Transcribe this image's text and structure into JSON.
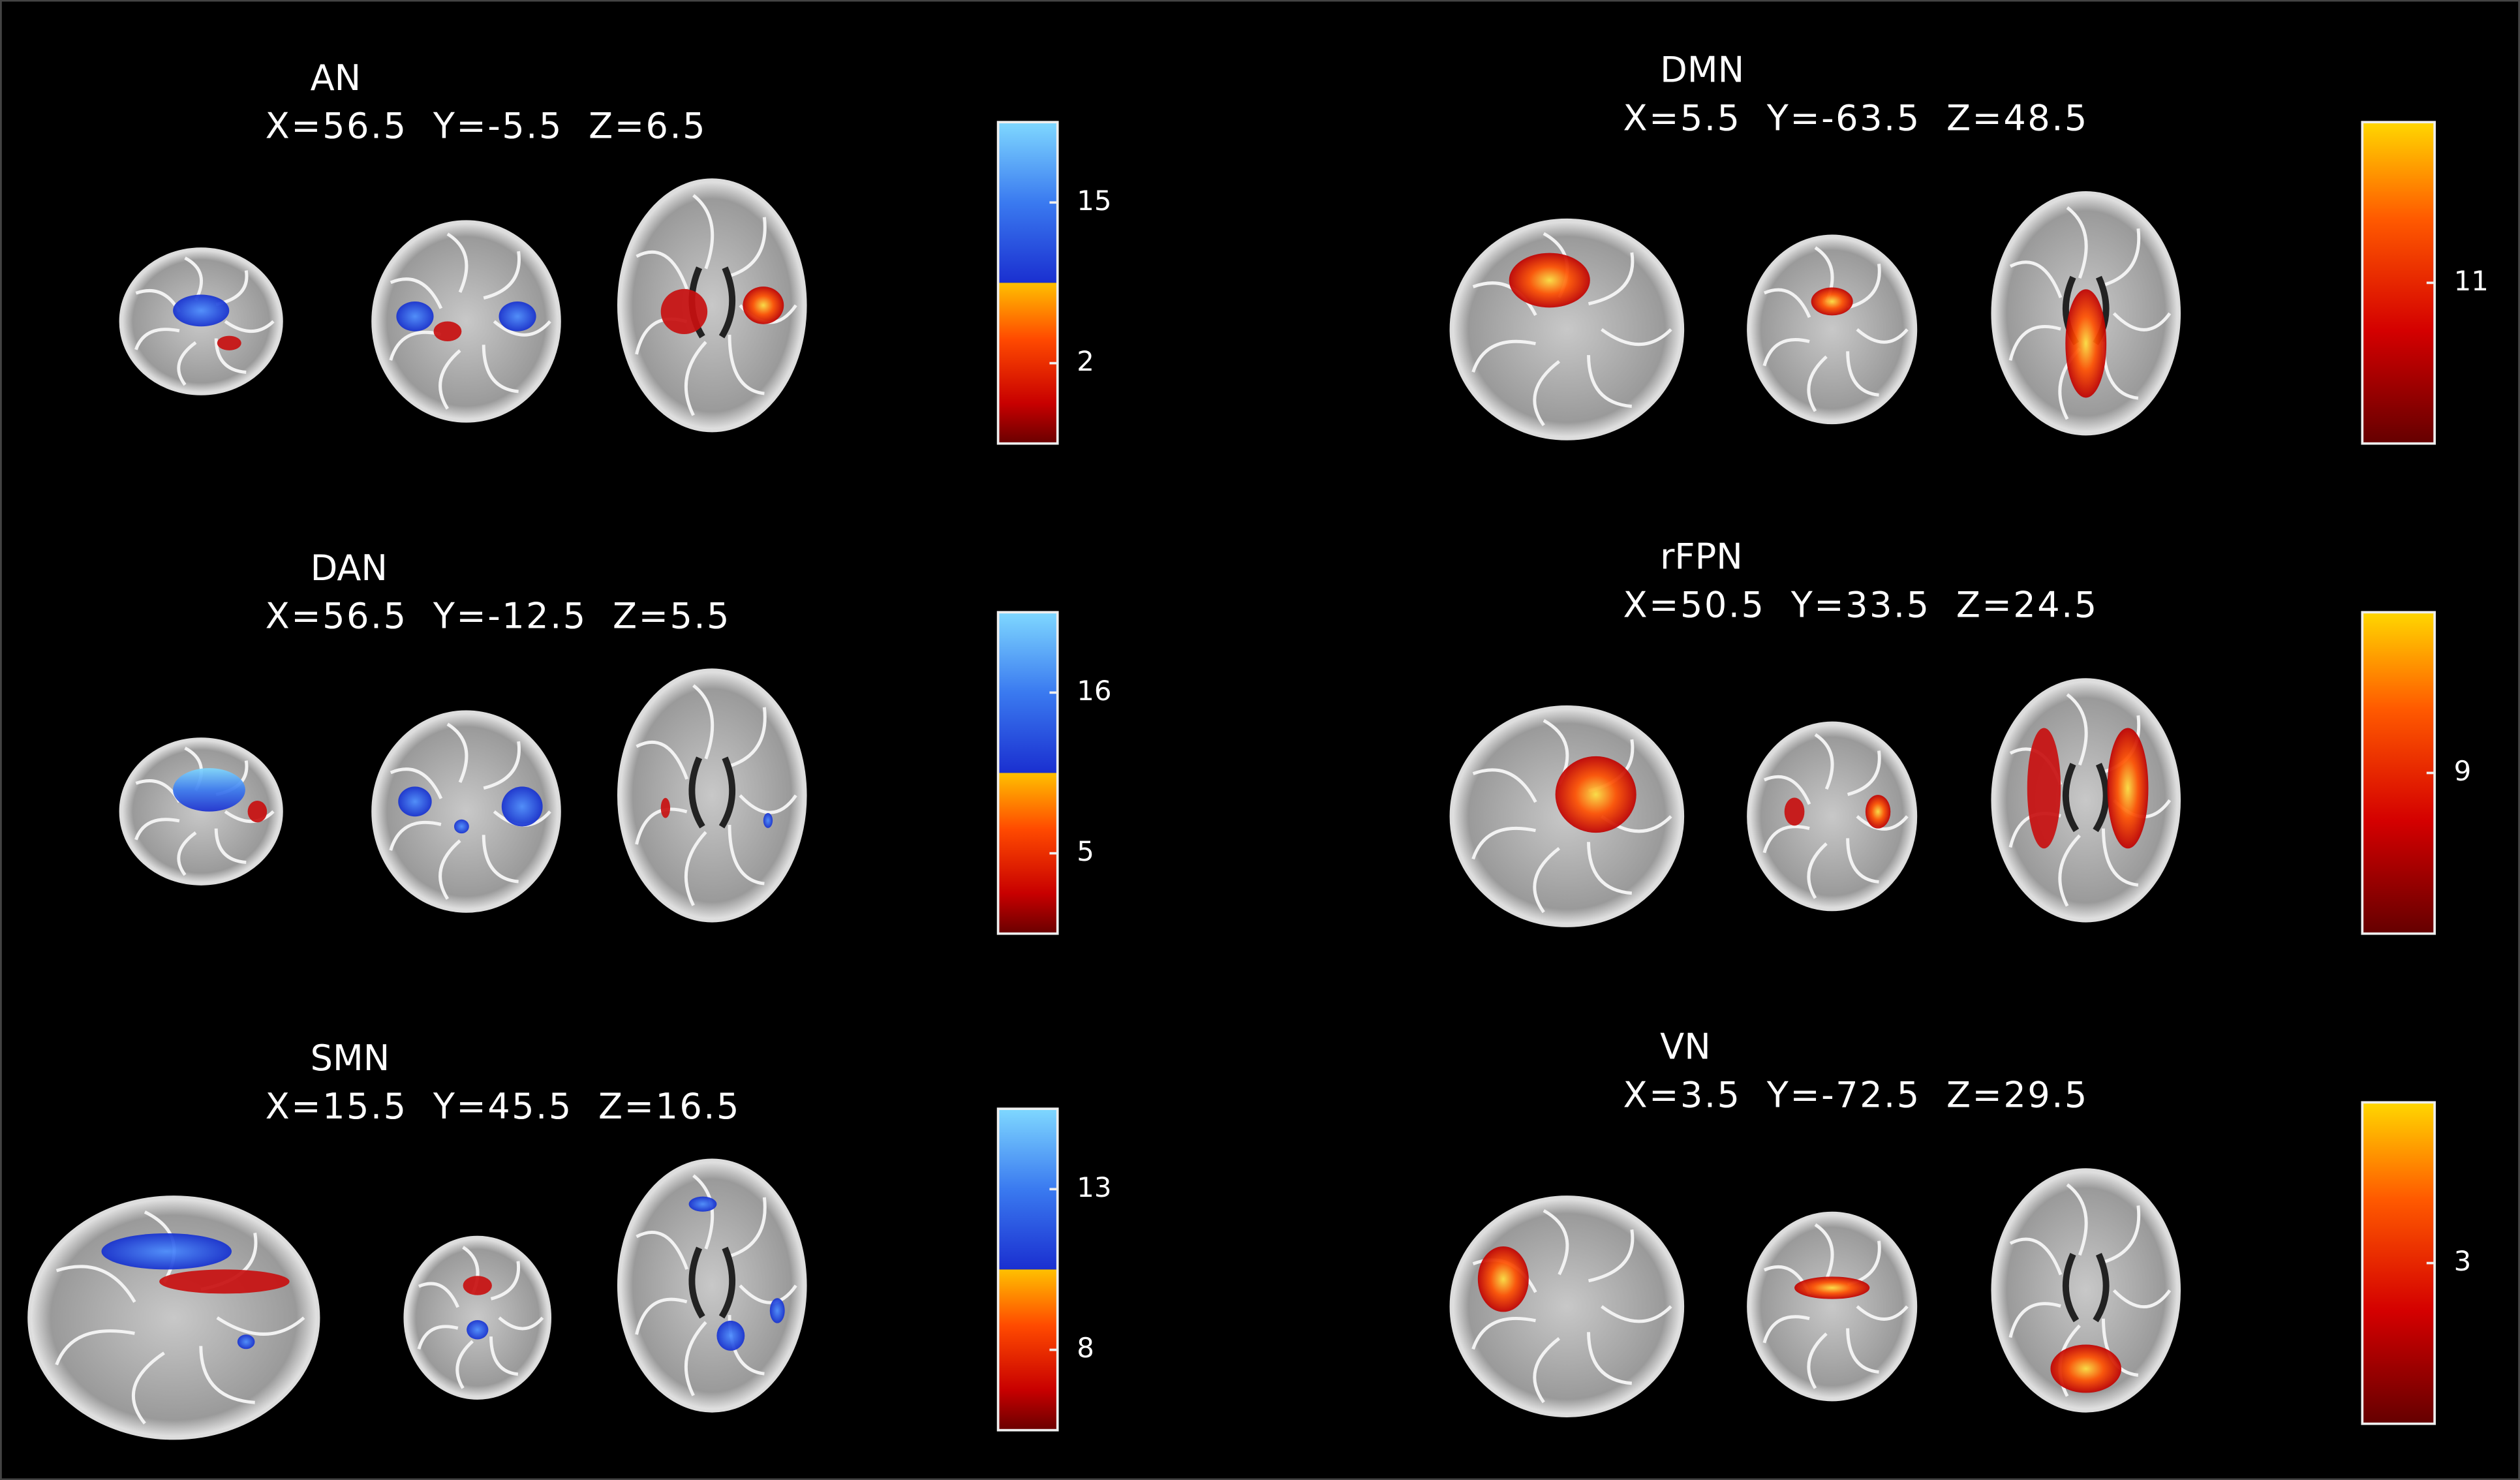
{
  "left_column": [
    {
      "title": "AN",
      "coordinates": "X=56.5  Y=-5.5  Z=6.5",
      "colorbar_ticks": [
        "15",
        "2"
      ]
    },
    {
      "title": "DAN",
      "coordinates": "X=56.5  Y=-12.5  Z=5.5",
      "colorbar_ticks": [
        "16",
        "5"
      ]
    },
    {
      "title": "SMN",
      "coordinates": "X=15.5  Y=45.5  Z=16.5",
      "colorbar_ticks": [
        "13",
        "8"
      ]
    }
  ],
  "right_column": [
    {
      "title": "DMN",
      "coordinates": "X=5.5  Y=-63.5  Z=48.5",
      "colorbar_ticks": [
        "11"
      ]
    },
    {
      "title": "rFPN",
      "coordinates": "X=50.5  Y=33.5  Z=24.5",
      "colorbar_ticks": [
        "9"
      ]
    },
    {
      "title": "VN",
      "coordinates": "X=3.5  Y=-72.5  Z=29.5",
      "colorbar_ticks": [
        "3"
      ]
    }
  ]
}
